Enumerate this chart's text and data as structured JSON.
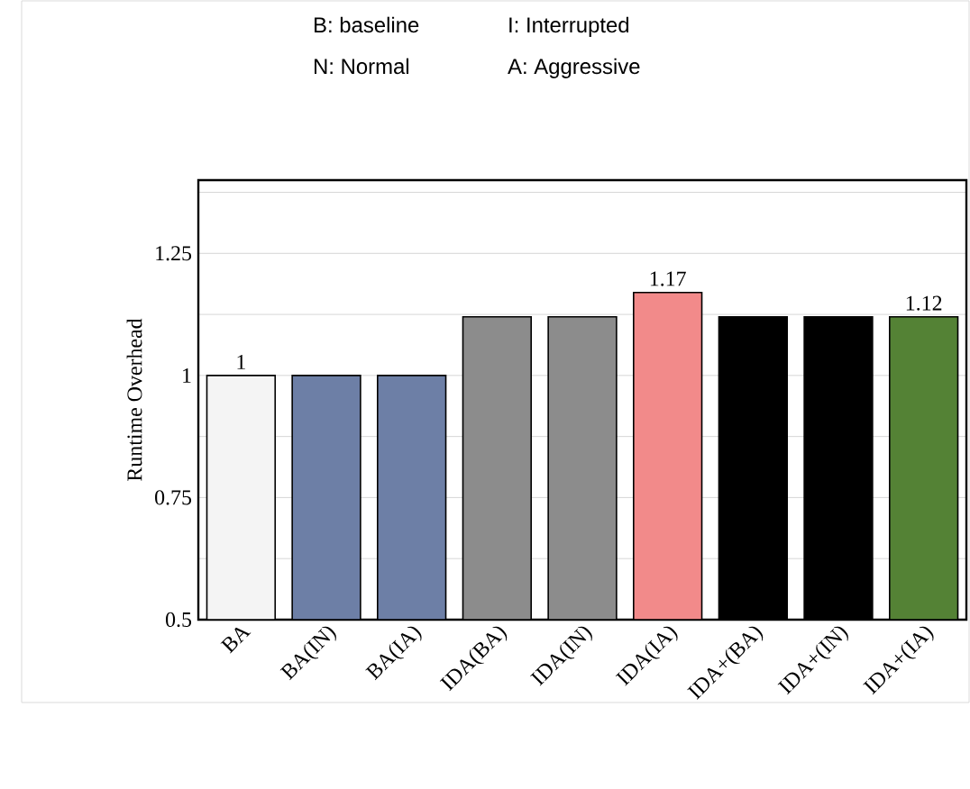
{
  "chart_data": {
    "type": "bar",
    "ylabel": "Runtime Overhead",
    "annotations": [
      "B: baseline",
      "I: Interrupted",
      "N: Normal",
      "A: Aggressive"
    ],
    "categories": [
      "BA",
      "BA(IN)",
      "BA(IA)",
      "IDA(BA)",
      "IDA(IN)",
      "IDA(IA)",
      "IDA+(BA)",
      "IDA+(IN)",
      "IDA+(IA)"
    ],
    "values": [
      1,
      1,
      1,
      1.12,
      1.12,
      1.17,
      1.12,
      1.12,
      1.12
    ],
    "colors": [
      "#f4f4f4",
      "#6d7fa6",
      "#6d7fa6",
      "#8c8c8c",
      "#8c8c8c",
      "#f28a8a",
      "#000000",
      "#000000",
      "#548235"
    ],
    "value_labels": [
      "1",
      null,
      null,
      null,
      null,
      "1.17",
      null,
      null,
      "1.12"
    ],
    "ylim": [
      0.5,
      1.4
    ],
    "yticks": [
      0.5,
      {
        "value": 0.625,
        "label": null
      },
      0.75,
      {
        "value": 0.875,
        "label": null
      },
      1,
      {
        "value": 1.125,
        "label": null
      },
      1.25,
      {
        "value": 1.375,
        "label": null
      }
    ],
    "grid": "y"
  }
}
